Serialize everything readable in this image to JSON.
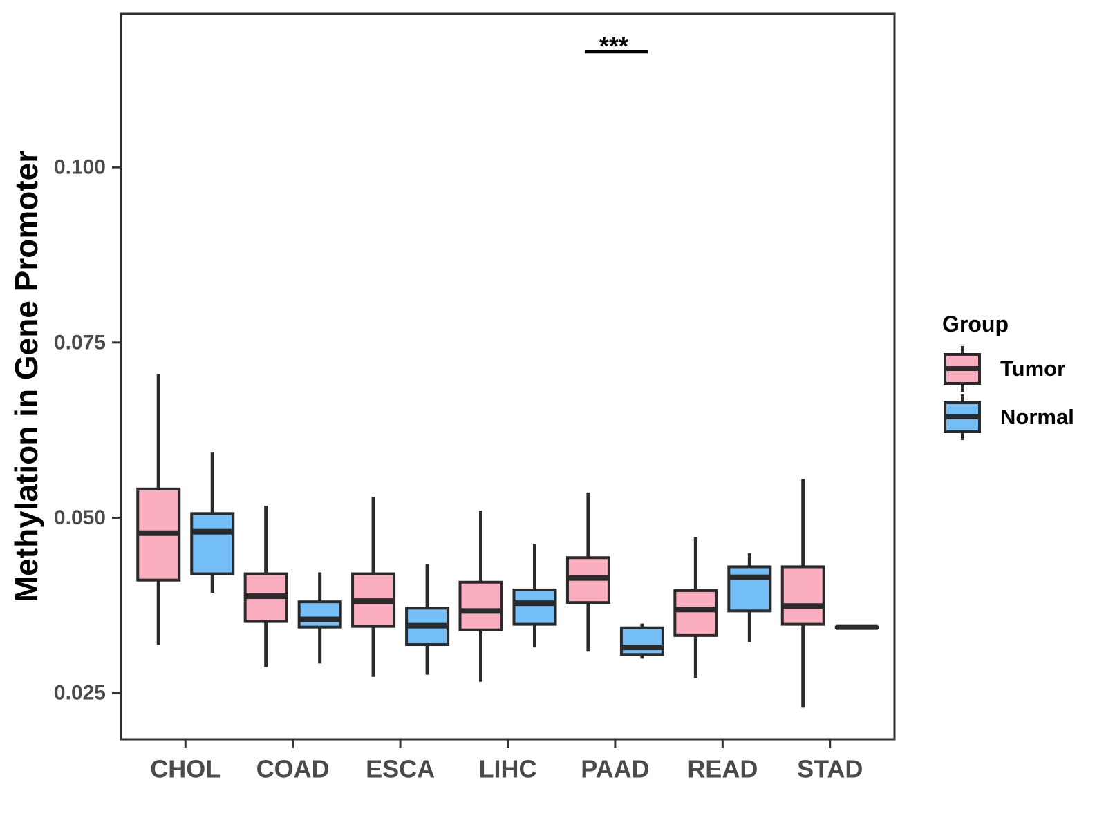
{
  "chart_data": {
    "type": "boxplot",
    "title": "",
    "xlabel": "",
    "ylabel": "Methylation in Gene Promoter",
    "categories": [
      "CHOL",
      "COAD",
      "ESCA",
      "LIHC",
      "PAAD",
      "READ",
      "STAD"
    ],
    "y_ticks": [
      0.025,
      0.05,
      0.075,
      0.1
    ],
    "y_tick_labels": [
      "0.025",
      "0.050",
      "0.075",
      "0.100"
    ],
    "ylim": [
      0.0184,
      0.1219
    ],
    "grid": "off",
    "colors": {
      "box_outline": "#2a2a2a",
      "panel_border": "#2e2e2e",
      "tick": "#333333",
      "axis_text": "#4a4a4a"
    },
    "legend": {
      "title": "Group",
      "position": "right",
      "entries": [
        {
          "label": "Tumor",
          "color": "#fcaec1"
        },
        {
          "label": "Normal",
          "color": "#74bff8"
        }
      ]
    },
    "series": [
      {
        "name": "Tumor",
        "color": "#fcaec1",
        "boxes": [
          {
            "category": "CHOL",
            "min": 0.0319,
            "q1": 0.0411,
            "median": 0.0478,
            "q3": 0.0541,
            "max": 0.0705
          },
          {
            "category": "COAD",
            "min": 0.0287,
            "q1": 0.0352,
            "median": 0.0388,
            "q3": 0.042,
            "max": 0.0517
          },
          {
            "category": "ESCA",
            "min": 0.0273,
            "q1": 0.0345,
            "median": 0.0381,
            "q3": 0.042,
            "max": 0.053
          },
          {
            "category": "LIHC",
            "min": 0.0266,
            "q1": 0.034,
            "median": 0.0367,
            "q3": 0.0408,
            "max": 0.051
          },
          {
            "category": "PAAD",
            "min": 0.0309,
            "q1": 0.0379,
            "median": 0.0414,
            "q3": 0.0443,
            "max": 0.0536
          },
          {
            "category": "READ",
            "min": 0.0271,
            "q1": 0.0332,
            "median": 0.0369,
            "q3": 0.0396,
            "max": 0.0472
          },
          {
            "category": "STAD",
            "min": 0.0229,
            "q1": 0.0348,
            "median": 0.0374,
            "q3": 0.043,
            "max": 0.0555
          }
        ]
      },
      {
        "name": "Normal",
        "color": "#74bff8",
        "boxes": [
          {
            "category": "CHOL",
            "min": 0.0393,
            "q1": 0.042,
            "median": 0.048,
            "q3": 0.0506,
            "max": 0.0593
          },
          {
            "category": "COAD",
            "min": 0.0292,
            "q1": 0.0344,
            "median": 0.0355,
            "q3": 0.038,
            "max": 0.0422
          },
          {
            "category": "ESCA",
            "min": 0.0276,
            "q1": 0.0319,
            "median": 0.0346,
            "q3": 0.0371,
            "max": 0.0434
          },
          {
            "category": "LIHC",
            "min": 0.0315,
            "q1": 0.0348,
            "median": 0.0378,
            "q3": 0.0397,
            "max": 0.0463
          },
          {
            "category": "PAAD",
            "min": 0.0299,
            "q1": 0.0305,
            "median": 0.0315,
            "q3": 0.0343,
            "max": 0.0349
          },
          {
            "category": "READ",
            "min": 0.0322,
            "q1": 0.0367,
            "median": 0.0415,
            "q3": 0.043,
            "max": 0.0449
          },
          {
            "category": "STAD",
            "min": 0.0344,
            "q1": 0.0344,
            "median": 0.0344,
            "q3": 0.0344,
            "max": 0.0344
          }
        ]
      }
    ],
    "annotations": [
      {
        "label": "***",
        "category": "PAAD",
        "line_y": 0.1165
      }
    ]
  }
}
